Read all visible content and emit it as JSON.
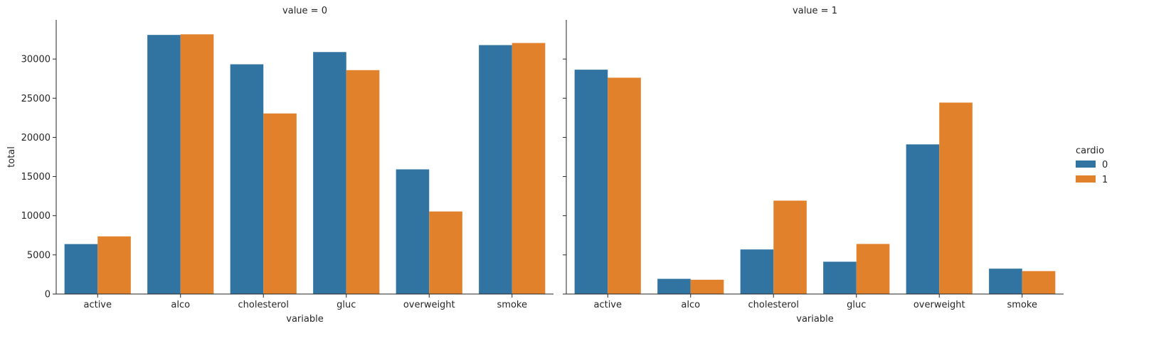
{
  "chart_data": {
    "type": "bar",
    "layout": "facet-columns",
    "legend": {
      "title": "cardio",
      "placement": "right",
      "entries": [
        "0",
        "1"
      ]
    },
    "colors": {
      "0": "#3274a1",
      "1": "#e1812c"
    },
    "categories": [
      "active",
      "alco",
      "cholesterol",
      "gluc",
      "overweight",
      "smoke"
    ],
    "xlabel": "variable",
    "ylabel": "total",
    "ylim": [
      0,
      35000
    ],
    "yticks": [
      "0",
      "5000",
      "10000",
      "15000",
      "20000",
      "25000",
      "30000"
    ],
    "panels": [
      {
        "title": "value = 0",
        "series": [
          {
            "name": "0",
            "values": [
              6378,
              33080,
              29330,
              30894,
              15915,
              31781
            ]
          },
          {
            "name": "1",
            "values": [
              7361,
              33156,
              23055,
              28585,
              10539,
              32050
            ]
          }
        ]
      },
      {
        "title": "value = 1",
        "series": [
          {
            "name": "0",
            "values": [
              28643,
              1941,
              5691,
              4127,
              19106,
              3240
            ]
          },
          {
            "name": "1",
            "values": [
              27618,
              1823,
              11924,
              6394,
              24440,
              2929
            ]
          }
        ]
      }
    ]
  }
}
